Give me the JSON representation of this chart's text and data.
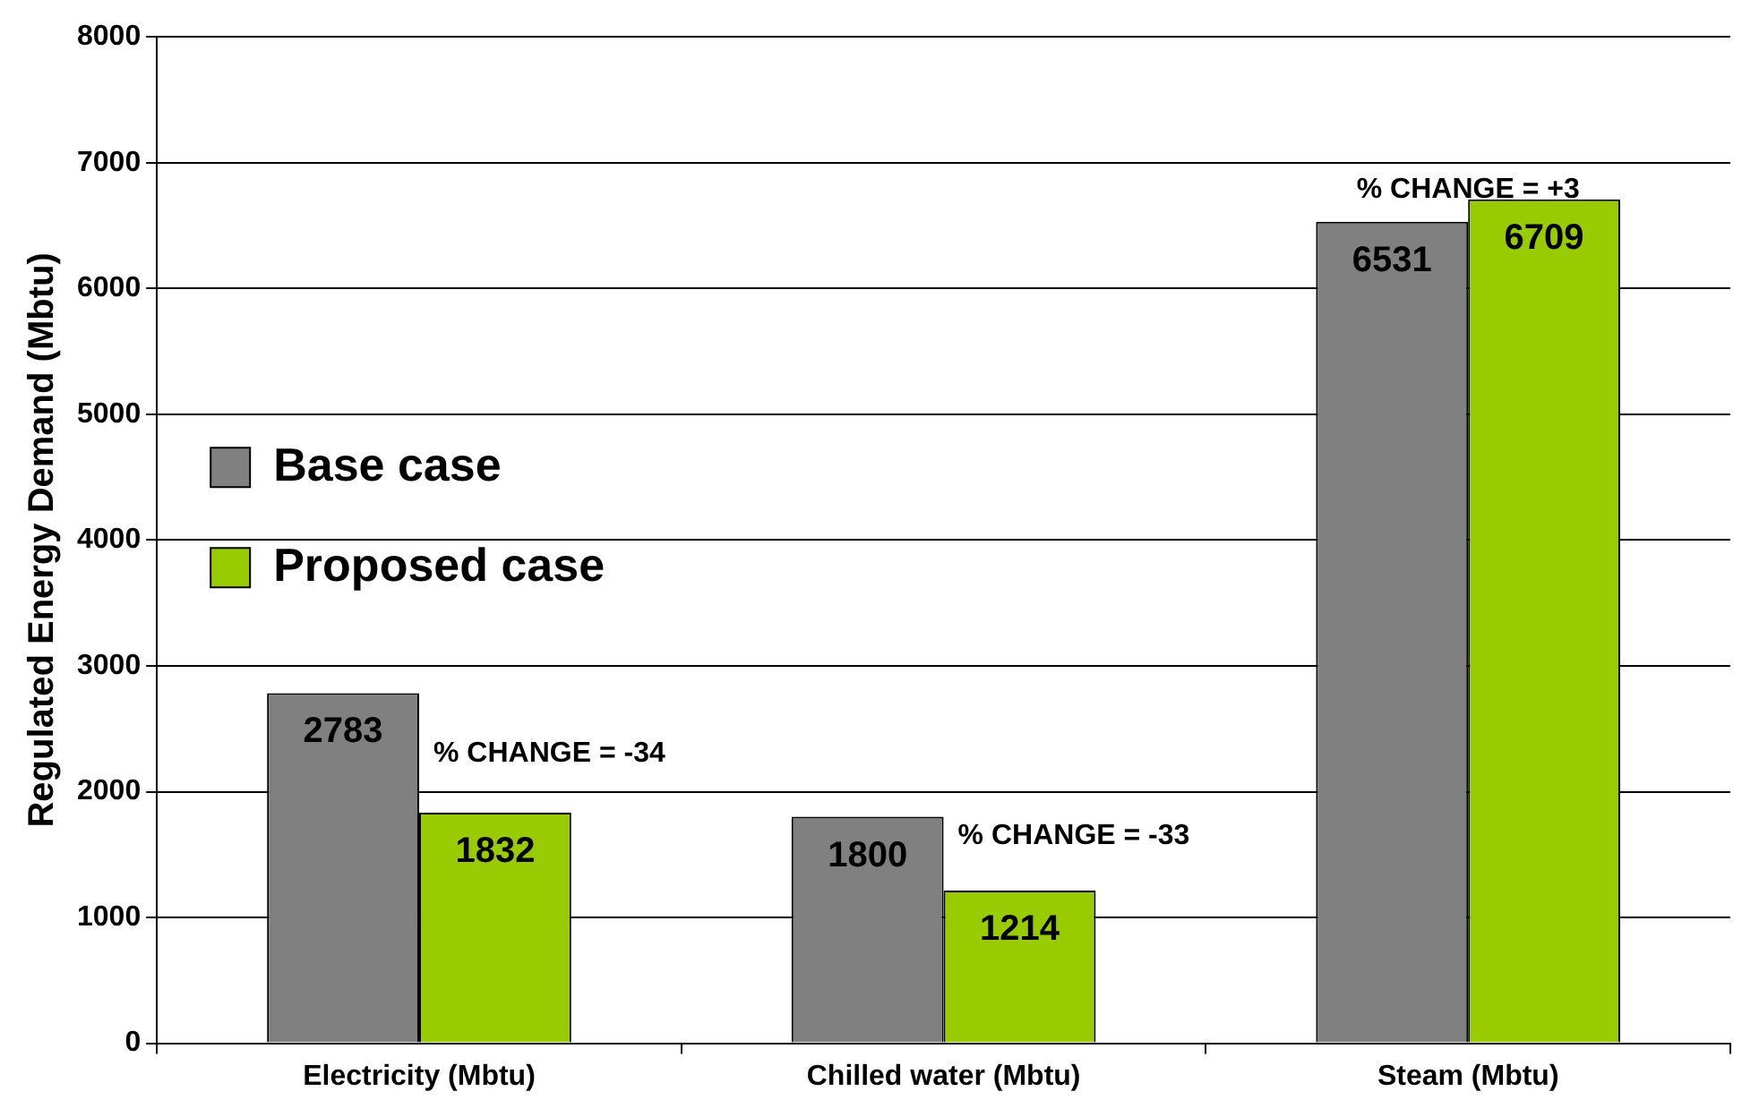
{
  "chart_data": {
    "type": "bar",
    "ylabel": "Regulated Energy Demand (Mbtu)",
    "categories": [
      "Electricity (Mbtu)",
      "Chilled water (Mbtu)",
      "Steam (Mbtu)"
    ],
    "series": [
      {
        "name": "Base case",
        "color": "#808080",
        "values": [
          2783,
          1800,
          6531
        ]
      },
      {
        "name": "Proposed case",
        "color": "#99cc00",
        "values": [
          1832,
          1214,
          6709
        ]
      }
    ],
    "ylim": [
      0,
      8000
    ],
    "yticks": [
      0,
      1000,
      2000,
      3000,
      4000,
      5000,
      6000,
      7000,
      8000
    ],
    "grid": "y",
    "legend": "top",
    "data_labels": true,
    "annotations": [
      {
        "text": "% CHANGE = -34",
        "x": "Electricity (Mbtu)",
        "y": 2300
      },
      {
        "text": "% CHANGE = -33",
        "x": "Chilled water (Mbtu)",
        "y": 1650
      },
      "% CHANGE = +3"
    ]
  }
}
